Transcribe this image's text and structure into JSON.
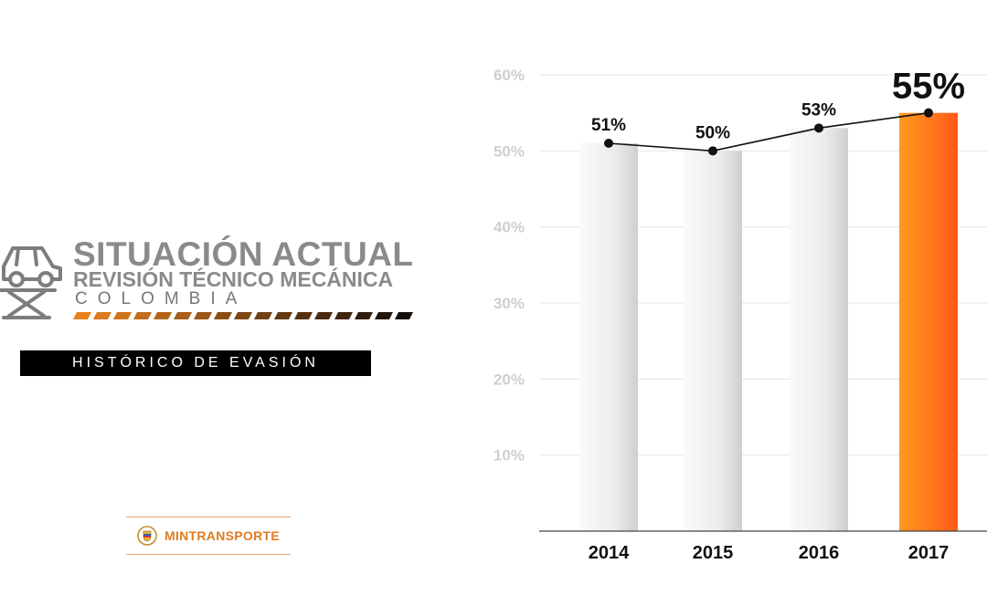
{
  "header": {
    "title": "SITUACIÓN ACTUAL",
    "subtitle": "REVISIÓN TÉCNICO MECÁNICA",
    "country": "COLOMBIA",
    "tag": "HISTÓRICO DE EVASIÓN"
  },
  "logo": {
    "text": "MINTRANSPORTE",
    "icon": "coat-of-arms-icon"
  },
  "colors": {
    "grey_text": "#8a8a8a",
    "accent_orange": "#ff7a1a",
    "bar_grey": "#e6e6e6",
    "tag_bg": "#000000"
  },
  "chart_data": {
    "type": "bar",
    "categories": [
      "2014",
      "2015",
      "2016",
      "2017"
    ],
    "values": [
      51,
      50,
      53,
      55
    ],
    "data_labels": [
      "51%",
      "50%",
      "53%",
      "55%"
    ],
    "highlight_index": 3,
    "overlay_line": true,
    "ylim": [
      0,
      60
    ],
    "yticks": [
      "10%",
      "20%",
      "30%",
      "40%",
      "50%",
      "60%"
    ],
    "ytick_values": [
      10,
      20,
      30,
      40,
      50,
      60
    ],
    "grid": true,
    "title": "",
    "xlabel": "",
    "ylabel": ""
  }
}
